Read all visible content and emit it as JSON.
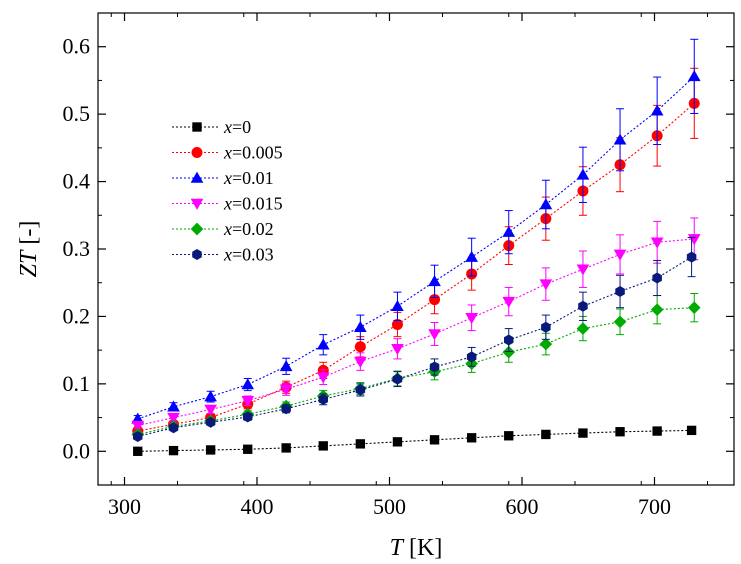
{
  "chart_data": {
    "type": "scatter",
    "xlabel": {
      "var": "T",
      "unit": " [K]"
    },
    "ylabel": {
      "var": "ZT",
      "unit": " [-]"
    },
    "xlim": [
      280,
      760
    ],
    "ylim": [
      -0.05,
      0.65
    ],
    "xticks": [
      300,
      400,
      500,
      600,
      700
    ],
    "yticks": [
      0.0,
      0.1,
      0.2,
      0.3,
      0.4,
      0.5,
      0.6
    ],
    "ytick_labels": [
      "0.0",
      "0.1",
      "0.2",
      "0.3",
      "0.4",
      "0.5",
      "0.6"
    ],
    "grid": false,
    "legend_position": "upper-left",
    "series": [
      {
        "name": "x=0",
        "legend_var": "x",
        "legend_val": "=0",
        "marker": "square",
        "color": "#000000",
        "x": [
          310,
          337,
          365,
          393,
          422,
          450,
          478,
          506,
          534,
          562,
          590,
          618,
          646,
          674,
          702,
          728
        ],
        "y": [
          0.0,
          0.001,
          0.002,
          0.003,
          0.005,
          0.008,
          0.011,
          0.014,
          0.017,
          0.02,
          0.023,
          0.025,
          0.027,
          0.029,
          0.03,
          0.031
        ],
        "err": [
          0,
          0,
          0,
          0,
          0,
          0,
          0,
          0,
          0,
          0,
          0,
          0,
          0,
          0,
          0,
          0
        ]
      },
      {
        "name": "x=0.005",
        "legend_var": "x",
        "legend_val": "=0.005",
        "marker": "circle",
        "color": "#ff0000",
        "x": [
          310,
          337,
          365,
          393,
          422,
          450,
          478,
          506,
          534,
          562,
          590,
          618,
          646,
          674,
          702,
          730
        ],
        "y": [
          0.03,
          0.04,
          0.05,
          0.07,
          0.095,
          0.12,
          0.155,
          0.188,
          0.225,
          0.263,
          0.305,
          0.345,
          0.386,
          0.425,
          0.468,
          0.516
        ],
        "err": [
          0.003,
          0.004,
          0.005,
          0.007,
          0.009,
          0.012,
          0.015,
          0.018,
          0.021,
          0.024,
          0.028,
          0.032,
          0.036,
          0.04,
          0.045,
          0.052
        ]
      },
      {
        "name": "x=0.01",
        "legend_var": "x",
        "legend_val": "=0.01",
        "marker": "triangle-up",
        "color": "#0000ff",
        "x": [
          310,
          337,
          365,
          393,
          422,
          450,
          478,
          506,
          534,
          562,
          590,
          618,
          646,
          674,
          702,
          730
        ],
        "y": [
          0.048,
          0.066,
          0.081,
          0.099,
          0.126,
          0.158,
          0.184,
          0.215,
          0.252,
          0.288,
          0.325,
          0.366,
          0.41,
          0.462,
          0.505,
          0.556
        ],
        "err": [
          0.005,
          0.006,
          0.008,
          0.009,
          0.012,
          0.015,
          0.018,
          0.021,
          0.024,
          0.028,
          0.032,
          0.036,
          0.041,
          0.046,
          0.05,
          0.055
        ]
      },
      {
        "name": "x=0.015",
        "legend_var": "x",
        "legend_val": "=0.015",
        "marker": "triangle-down",
        "color": "#ff00ff",
        "x": [
          310,
          337,
          365,
          393,
          422,
          450,
          478,
          506,
          534,
          562,
          590,
          618,
          646,
          674,
          702,
          730
        ],
        "y": [
          0.038,
          0.05,
          0.062,
          0.075,
          0.092,
          0.11,
          0.133,
          0.152,
          0.174,
          0.198,
          0.222,
          0.248,
          0.27,
          0.292,
          0.31,
          0.315
        ],
        "err": [
          0.004,
          0.005,
          0.006,
          0.007,
          0.009,
          0.011,
          0.013,
          0.015,
          0.017,
          0.019,
          0.021,
          0.024,
          0.027,
          0.029,
          0.031,
          0.031
        ]
      },
      {
        "name": "x=0.02",
        "legend_var": "x",
        "legend_val": "=0.02",
        "marker": "diamond",
        "color": "#00aa00",
        "x": [
          310,
          337,
          365,
          393,
          422,
          450,
          478,
          506,
          534,
          562,
          590,
          618,
          646,
          674,
          702,
          730
        ],
        "y": [
          0.025,
          0.037,
          0.045,
          0.055,
          0.067,
          0.082,
          0.093,
          0.108,
          0.118,
          0.13,
          0.147,
          0.159,
          0.182,
          0.192,
          0.21,
          0.213
        ],
        "err": [
          0.003,
          0.004,
          0.004,
          0.005,
          0.006,
          0.008,
          0.009,
          0.011,
          0.012,
          0.013,
          0.015,
          0.016,
          0.018,
          0.019,
          0.021,
          0.021
        ]
      },
      {
        "name": "x=0.03",
        "legend_var": "x",
        "legend_val": "=0.03",
        "marker": "hexagon",
        "color": "#0a1a7a",
        "x": [
          310,
          337,
          365,
          393,
          422,
          450,
          478,
          506,
          534,
          562,
          590,
          618,
          646,
          674,
          702,
          728
        ],
        "y": [
          0.022,
          0.035,
          0.043,
          0.051,
          0.063,
          0.077,
          0.091,
          0.107,
          0.125,
          0.14,
          0.165,
          0.184,
          0.215,
          0.237,
          0.257,
          0.288
        ],
        "err": [
          0.003,
          0.004,
          0.004,
          0.005,
          0.006,
          0.008,
          0.009,
          0.011,
          0.012,
          0.014,
          0.017,
          0.018,
          0.021,
          0.024,
          0.026,
          0.029
        ]
      }
    ]
  }
}
